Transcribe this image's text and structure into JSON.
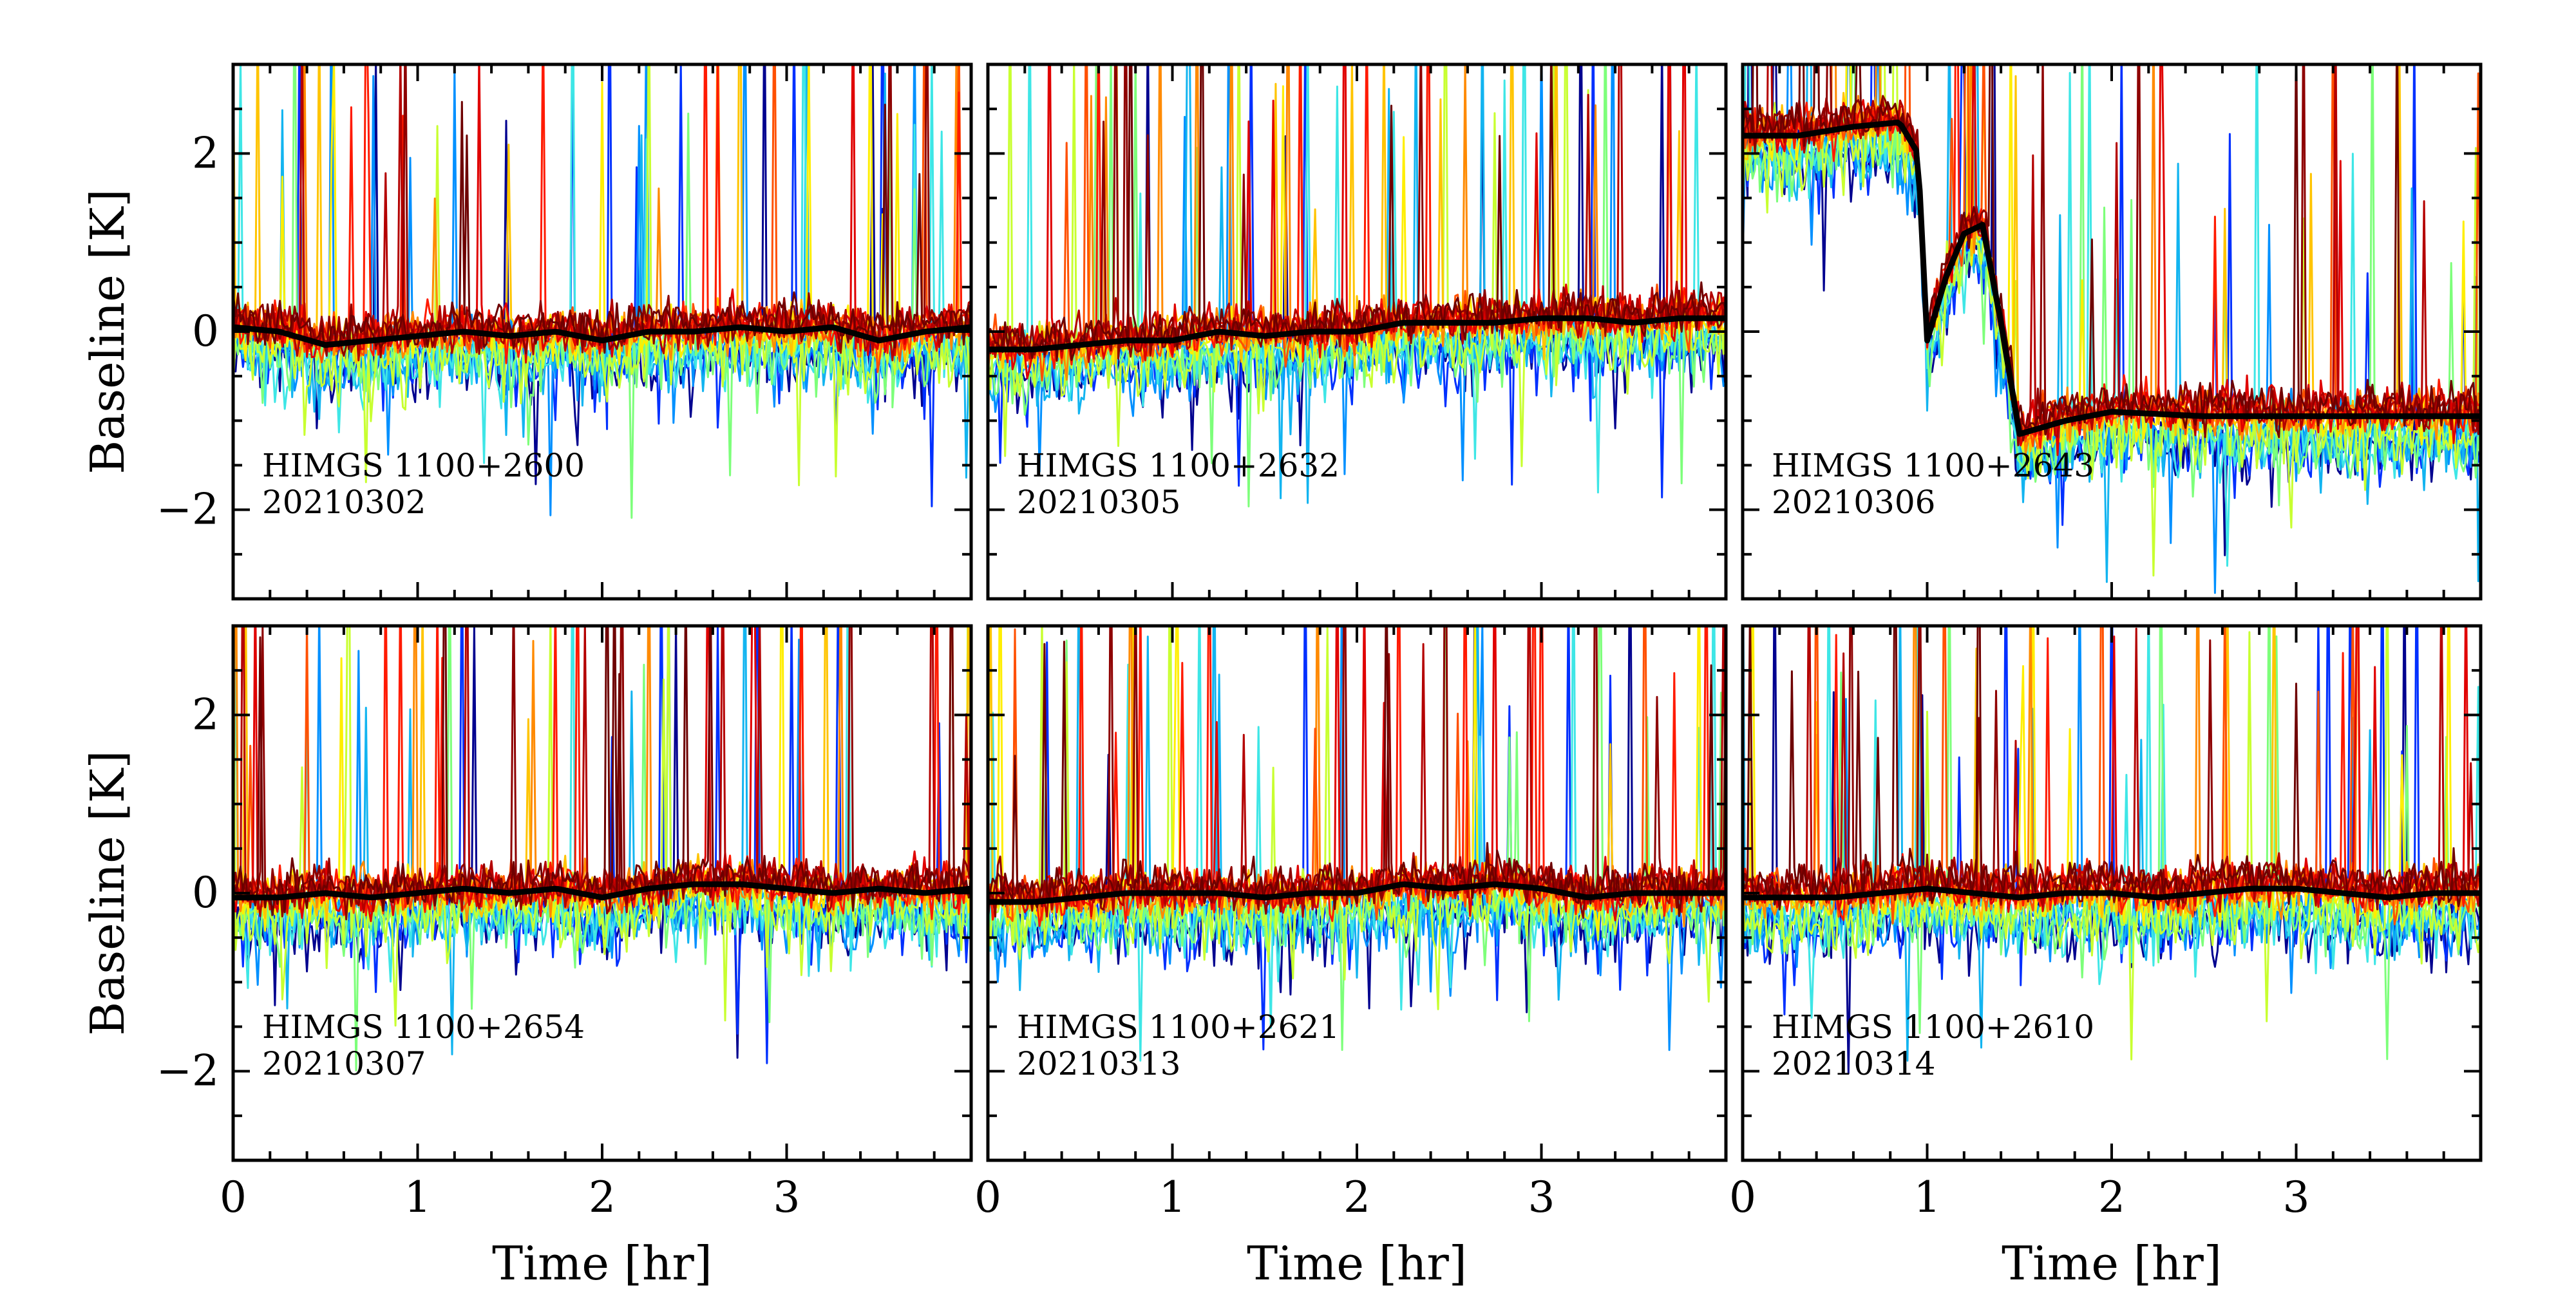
{
  "chart_data": [
    {
      "type": "line",
      "panel": "HIMGS 1100+2600",
      "date": "20210302",
      "xlabel": "",
      "ylabel": "Baseline [K]",
      "xlim": [
        0,
        4
      ],
      "ylim": [
        -3,
        3
      ],
      "xticks": [
        0,
        1,
        2,
        3
      ],
      "yticks": [
        -2,
        0,
        2
      ],
      "feeds": {
        "spread": 0.25,
        "low_color_negative_excursions": true
      },
      "median": {
        "x": [
          0,
          0.25,
          0.5,
          0.75,
          1.0,
          1.25,
          1.5,
          1.75,
          2.0,
          2.25,
          2.5,
          2.75,
          3.0,
          3.25,
          3.5,
          3.75,
          4.0
        ],
        "y": [
          0.05,
          0.0,
          -0.15,
          -0.1,
          -0.05,
          0.0,
          -0.05,
          0.0,
          -0.1,
          0.0,
          0.0,
          0.05,
          0.0,
          0.05,
          -0.1,
          0.0,
          0.05
        ]
      }
    },
    {
      "type": "line",
      "panel": "HIMGS 1100+2632",
      "date": "20210305",
      "xlabel": "",
      "ylabel": "",
      "xlim": [
        0,
        4
      ],
      "ylim": [
        -3,
        3
      ],
      "xticks": [
        0,
        1,
        2,
        3
      ],
      "yticks": [
        -2,
        0,
        2
      ],
      "feeds": {
        "spread": 0.25,
        "low_color_negative_excursions": true
      },
      "median": {
        "x": [
          0,
          0.25,
          0.5,
          0.75,
          1.0,
          1.25,
          1.5,
          1.75,
          2.0,
          2.25,
          2.5,
          2.75,
          3.0,
          3.25,
          3.5,
          3.75,
          4.0
        ],
        "y": [
          -0.2,
          -0.2,
          -0.15,
          -0.1,
          -0.1,
          0.0,
          -0.05,
          0.0,
          0.0,
          0.1,
          0.1,
          0.1,
          0.15,
          0.15,
          0.1,
          0.15,
          0.15
        ]
      }
    },
    {
      "type": "line",
      "panel": "HIMGS 1100+2643",
      "date": "20210306",
      "xlabel": "",
      "ylabel": "",
      "xlim": [
        0,
        4
      ],
      "ylim": [
        -3,
        3
      ],
      "xticks": [
        0,
        1,
        2,
        3
      ],
      "yticks": [
        -2,
        0,
        2
      ],
      "feeds": {
        "spread": 0.3,
        "low_color_negative_excursions": true
      },
      "median": {
        "x": [
          0,
          0.3,
          0.6,
          0.85,
          0.95,
          1.0,
          1.1,
          1.2,
          1.3,
          1.4,
          1.5,
          1.75,
          2.0,
          2.5,
          3.0,
          3.5,
          4.0
        ],
        "y": [
          2.2,
          2.2,
          2.3,
          2.35,
          2.0,
          -0.1,
          0.6,
          1.1,
          1.2,
          0.1,
          -1.15,
          -1.0,
          -0.9,
          -0.95,
          -0.95,
          -0.95,
          -0.95
        ]
      }
    },
    {
      "type": "line",
      "panel": "HIMGS 1100+2654",
      "date": "20210307",
      "xlabel": "Time [hr]",
      "ylabel": "Baseline [K]",
      "xlim": [
        0,
        4
      ],
      "ylim": [
        -3,
        3
      ],
      "xticks": [
        0,
        1,
        2,
        3
      ],
      "yticks": [
        -2,
        0,
        2
      ],
      "feeds": {
        "spread": 0.25,
        "low_color_negative_excursions": true
      },
      "median": {
        "x": [
          0,
          0.25,
          0.5,
          0.75,
          1.0,
          1.25,
          1.5,
          1.75,
          2.0,
          2.25,
          2.5,
          2.75,
          3.0,
          3.25,
          3.5,
          3.75,
          4.0
        ],
        "y": [
          -0.05,
          -0.05,
          0.0,
          -0.05,
          0.0,
          0.05,
          0.0,
          0.05,
          -0.05,
          0.05,
          0.1,
          0.1,
          0.05,
          0.0,
          0.05,
          0.0,
          0.05
        ]
      }
    },
    {
      "type": "line",
      "panel": "HIMGS 1100+2621",
      "date": "20210313",
      "xlabel": "Time [hr]",
      "ylabel": "",
      "xlim": [
        0,
        4
      ],
      "ylim": [
        -3,
        3
      ],
      "xticks": [
        0,
        1,
        2,
        3
      ],
      "yticks": [
        -2,
        0,
        2
      ],
      "feeds": {
        "spread": 0.25,
        "low_color_negative_excursions": true
      },
      "median": {
        "x": [
          0,
          0.25,
          0.5,
          0.75,
          1.0,
          1.25,
          1.5,
          1.75,
          2.0,
          2.25,
          2.5,
          2.75,
          3.0,
          3.25,
          3.5,
          3.75,
          4.0
        ],
        "y": [
          -0.1,
          -0.1,
          -0.05,
          0.0,
          0.0,
          0.0,
          -0.05,
          0.0,
          0.0,
          0.1,
          0.05,
          0.1,
          0.05,
          -0.05,
          0.0,
          0.0,
          0.0
        ]
      }
    },
    {
      "type": "line",
      "panel": "HIMGS 1100+2610",
      "date": "20210314",
      "xlabel": "Time [hr]",
      "ylabel": "",
      "xlim": [
        0,
        4
      ],
      "ylim": [
        -3,
        3
      ],
      "xticks": [
        0,
        1,
        2,
        3
      ],
      "yticks": [
        -2,
        0,
        2
      ],
      "feeds": {
        "spread": 0.35,
        "low_color_negative_excursions": true
      },
      "median": {
        "x": [
          0,
          0.25,
          0.5,
          0.75,
          1.0,
          1.25,
          1.5,
          1.75,
          2.0,
          2.25,
          2.5,
          2.75,
          3.0,
          3.25,
          3.5,
          3.75,
          4.0
        ],
        "y": [
          -0.05,
          -0.05,
          -0.05,
          0.0,
          0.05,
          0.0,
          -0.05,
          0.0,
          0.0,
          -0.05,
          0.0,
          0.05,
          0.05,
          0.0,
          -0.05,
          0.0,
          0.0
        ]
      }
    }
  ],
  "feed_colors": [
    "#00008f",
    "#0030ff",
    "#0090ff",
    "#12b4f0",
    "#3ee6e6",
    "#7dff7a",
    "#c8ff30",
    "#ffee00",
    "#ffc400",
    "#ff8a00",
    "#ff5000",
    "#ff1a00",
    "#e00000",
    "#b40000",
    "#8e0000",
    "#6e0000"
  ],
  "median_color": "#000000"
}
